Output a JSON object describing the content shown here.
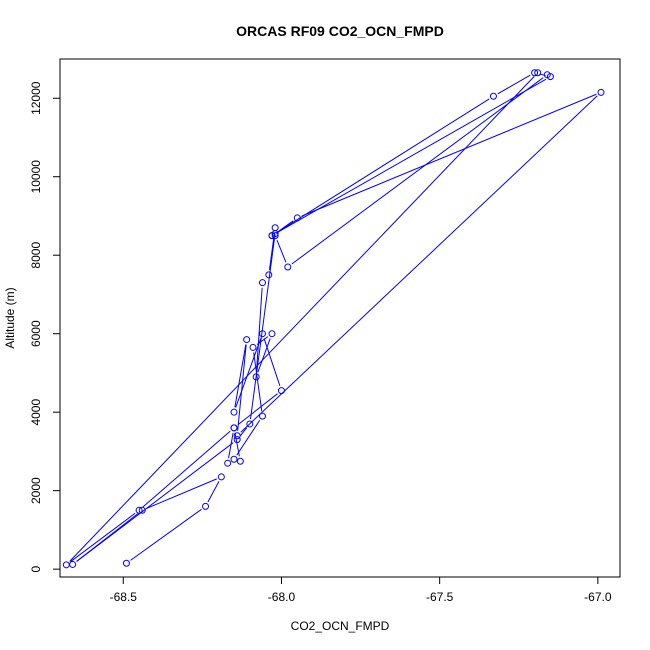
{
  "chart_data": {
    "type": "scatter",
    "connected": true,
    "title": "ORCAS RF09 CO2_OCN_FMPD",
    "xlabel": "CO2_OCN_FMPD",
    "ylabel": "Altitude (m)",
    "xlim": [
      -68.7,
      -66.93
    ],
    "ylim": [
      -200,
      13000
    ],
    "xticks": [
      -68.5,
      -68.0,
      -67.5,
      -67.0
    ],
    "xtick_labels": [
      "-68.5",
      "-68.0",
      "-67.5",
      "-67.0"
    ],
    "yticks": [
      0,
      2000,
      4000,
      6000,
      8000,
      10000,
      12000
    ],
    "ytick_labels": [
      "0",
      "2000",
      "4000",
      "6000",
      "8000",
      "10000",
      "12000"
    ],
    "grid": false,
    "legend": "none",
    "series_color": "#0000ff",
    "series": [
      {
        "x": [
          -68.49,
          -68.24,
          -68.19,
          -68.44,
          -68.66,
          -68.14,
          -68.1,
          -68.02,
          -67.95,
          -66.99,
          -68.14,
          -68.11,
          -68.15,
          -68.06,
          -68.0,
          -68.15,
          -68.17,
          -68.15,
          -68.06,
          -68.09,
          -68.03,
          -68.08,
          -68.06,
          -68.04,
          -68.02,
          -68.03,
          -67.33,
          -67.2,
          -67.15,
          -68.03,
          -68.02,
          -67.98,
          -67.16,
          -67.19,
          -68.68,
          -68.45,
          -68.15,
          -68.13
        ],
        "y": [
          150,
          1600,
          2350,
          1500,
          120,
          3300,
          3700,
          8550,
          8950,
          12150,
          3400,
          5850,
          4000,
          6000,
          4550,
          3600,
          2700,
          2800,
          3900,
          5650,
          6000,
          4900,
          7300,
          7500,
          8700,
          8500,
          12050,
          12650,
          12550,
          8500,
          8500,
          7700,
          12600,
          12650,
          110,
          1500,
          3600,
          2750
        ]
      }
    ]
  }
}
